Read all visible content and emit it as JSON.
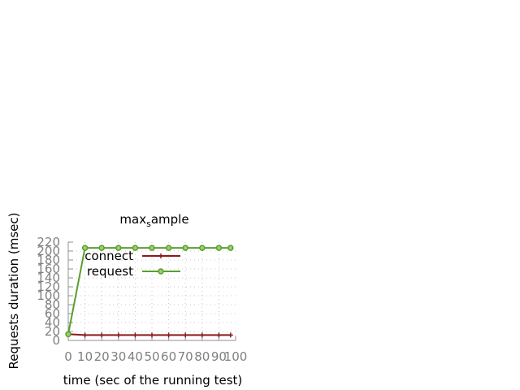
{
  "chart_data": {
    "type": "line",
    "title": "max",
    "title_subscript": "s",
    "title_suffix": "ample",
    "xlabel": "time (sec of the running test)",
    "ylabel": "Requests duration (msec)",
    "xlim": [
      0,
      100
    ],
    "ylim": [
      0,
      220
    ],
    "xticks": [
      0,
      10,
      20,
      30,
      40,
      50,
      60,
      70,
      80,
      90,
      100
    ],
    "yticks": [
      0,
      20,
      40,
      60,
      80,
      100,
      120,
      140,
      160,
      180,
      200,
      220
    ],
    "x": [
      0,
      10,
      20,
      30,
      40,
      50,
      60,
      70,
      80,
      90,
      97
    ],
    "grid": true,
    "legend_position": "top-left",
    "series": [
      {
        "name": "connect",
        "color": "#8b1a1a",
        "marker": "plus",
        "values": [
          14,
          12,
          12,
          12,
          12,
          12,
          12,
          12,
          12,
          12,
          12
        ]
      },
      {
        "name": "request",
        "color": "#5a9e2f",
        "marker": "circle",
        "values": [
          14,
          207,
          207,
          207,
          207,
          207,
          207,
          207,
          207,
          207,
          207
        ]
      }
    ]
  }
}
